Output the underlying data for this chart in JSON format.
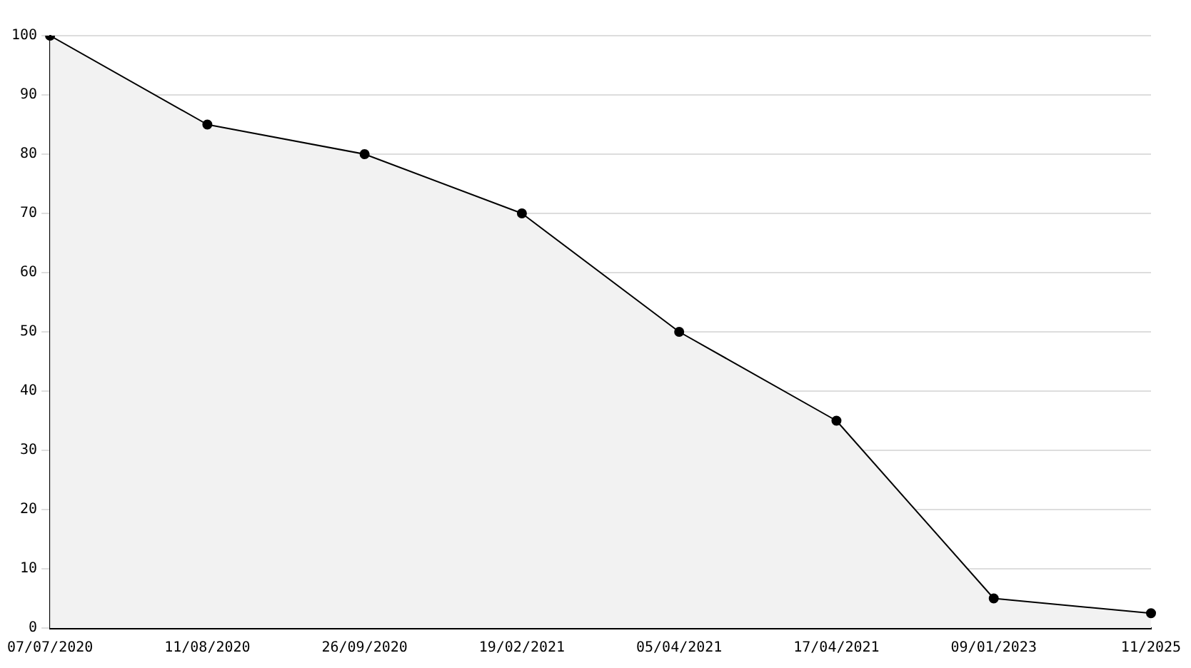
{
  "chart_data": {
    "type": "area",
    "categories": [
      "07/07/2020",
      "11/08/2020",
      "26/09/2020",
      "19/02/2021",
      "05/04/2021",
      "17/04/2021",
      "09/01/2023",
      "11/2025"
    ],
    "series": [
      {
        "color": "#000000",
        "values": [
          100,
          85,
          80,
          70,
          50,
          35,
          5,
          2.5
        ]
      }
    ],
    "ylim": [
      0,
      100
    ],
    "yticks": [
      0,
      10,
      20,
      30,
      40,
      50,
      60,
      70,
      80,
      90,
      100
    ],
    "grid": "y",
    "marker": "circle",
    "line_style": "solid",
    "legend": false
  }
}
